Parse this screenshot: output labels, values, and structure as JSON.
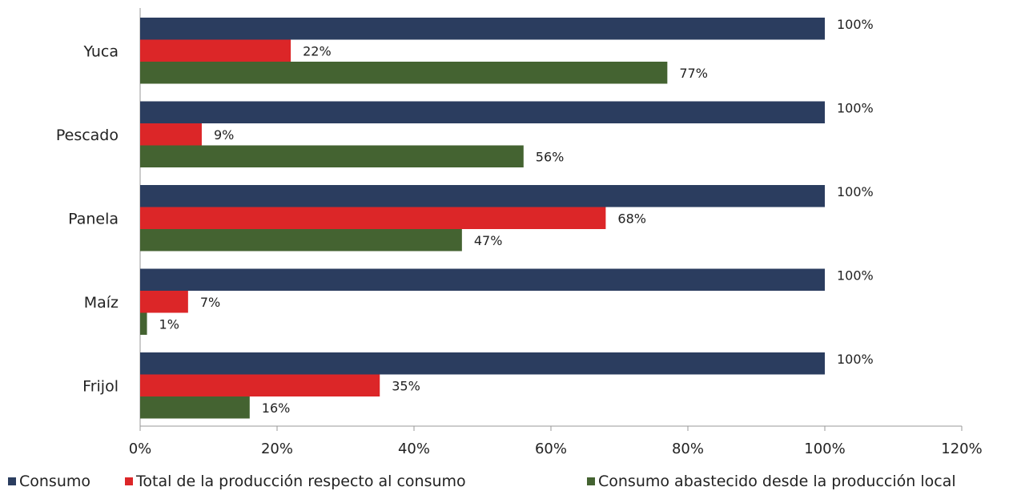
{
  "chart_data": {
    "type": "bar",
    "orientation": "horizontal",
    "categories": [
      "Yuca",
      "Pescado",
      "Panela",
      "Maíz",
      "Frijol"
    ],
    "series": [
      {
        "name": "Consumo",
        "color": "#2b3d5f",
        "values": [
          100,
          100,
          100,
          100,
          100
        ],
        "labels": [
          "100%",
          "100%",
          "100%",
          "100%",
          "100%"
        ]
      },
      {
        "name": "Total de la producción respecto al consumo",
        "color": "#dc2628",
        "values": [
          22,
          9,
          68,
          7,
          35
        ],
        "labels": [
          "22%",
          "9%",
          "68%",
          "7%",
          "35%"
        ]
      },
      {
        "name": "Consumo abastecido desde la producción local",
        "color": "#446331",
        "values": [
          77,
          56,
          47,
          1,
          16
        ],
        "labels": [
          "77%",
          "56%",
          "47%",
          "1%",
          "16%"
        ]
      }
    ],
    "xlim": [
      0,
      120
    ],
    "xticks": [
      "0%",
      "20%",
      "40%",
      "60%",
      "80%",
      "100%",
      "120%"
    ],
    "grid": false,
    "legend_position": "bottom"
  }
}
